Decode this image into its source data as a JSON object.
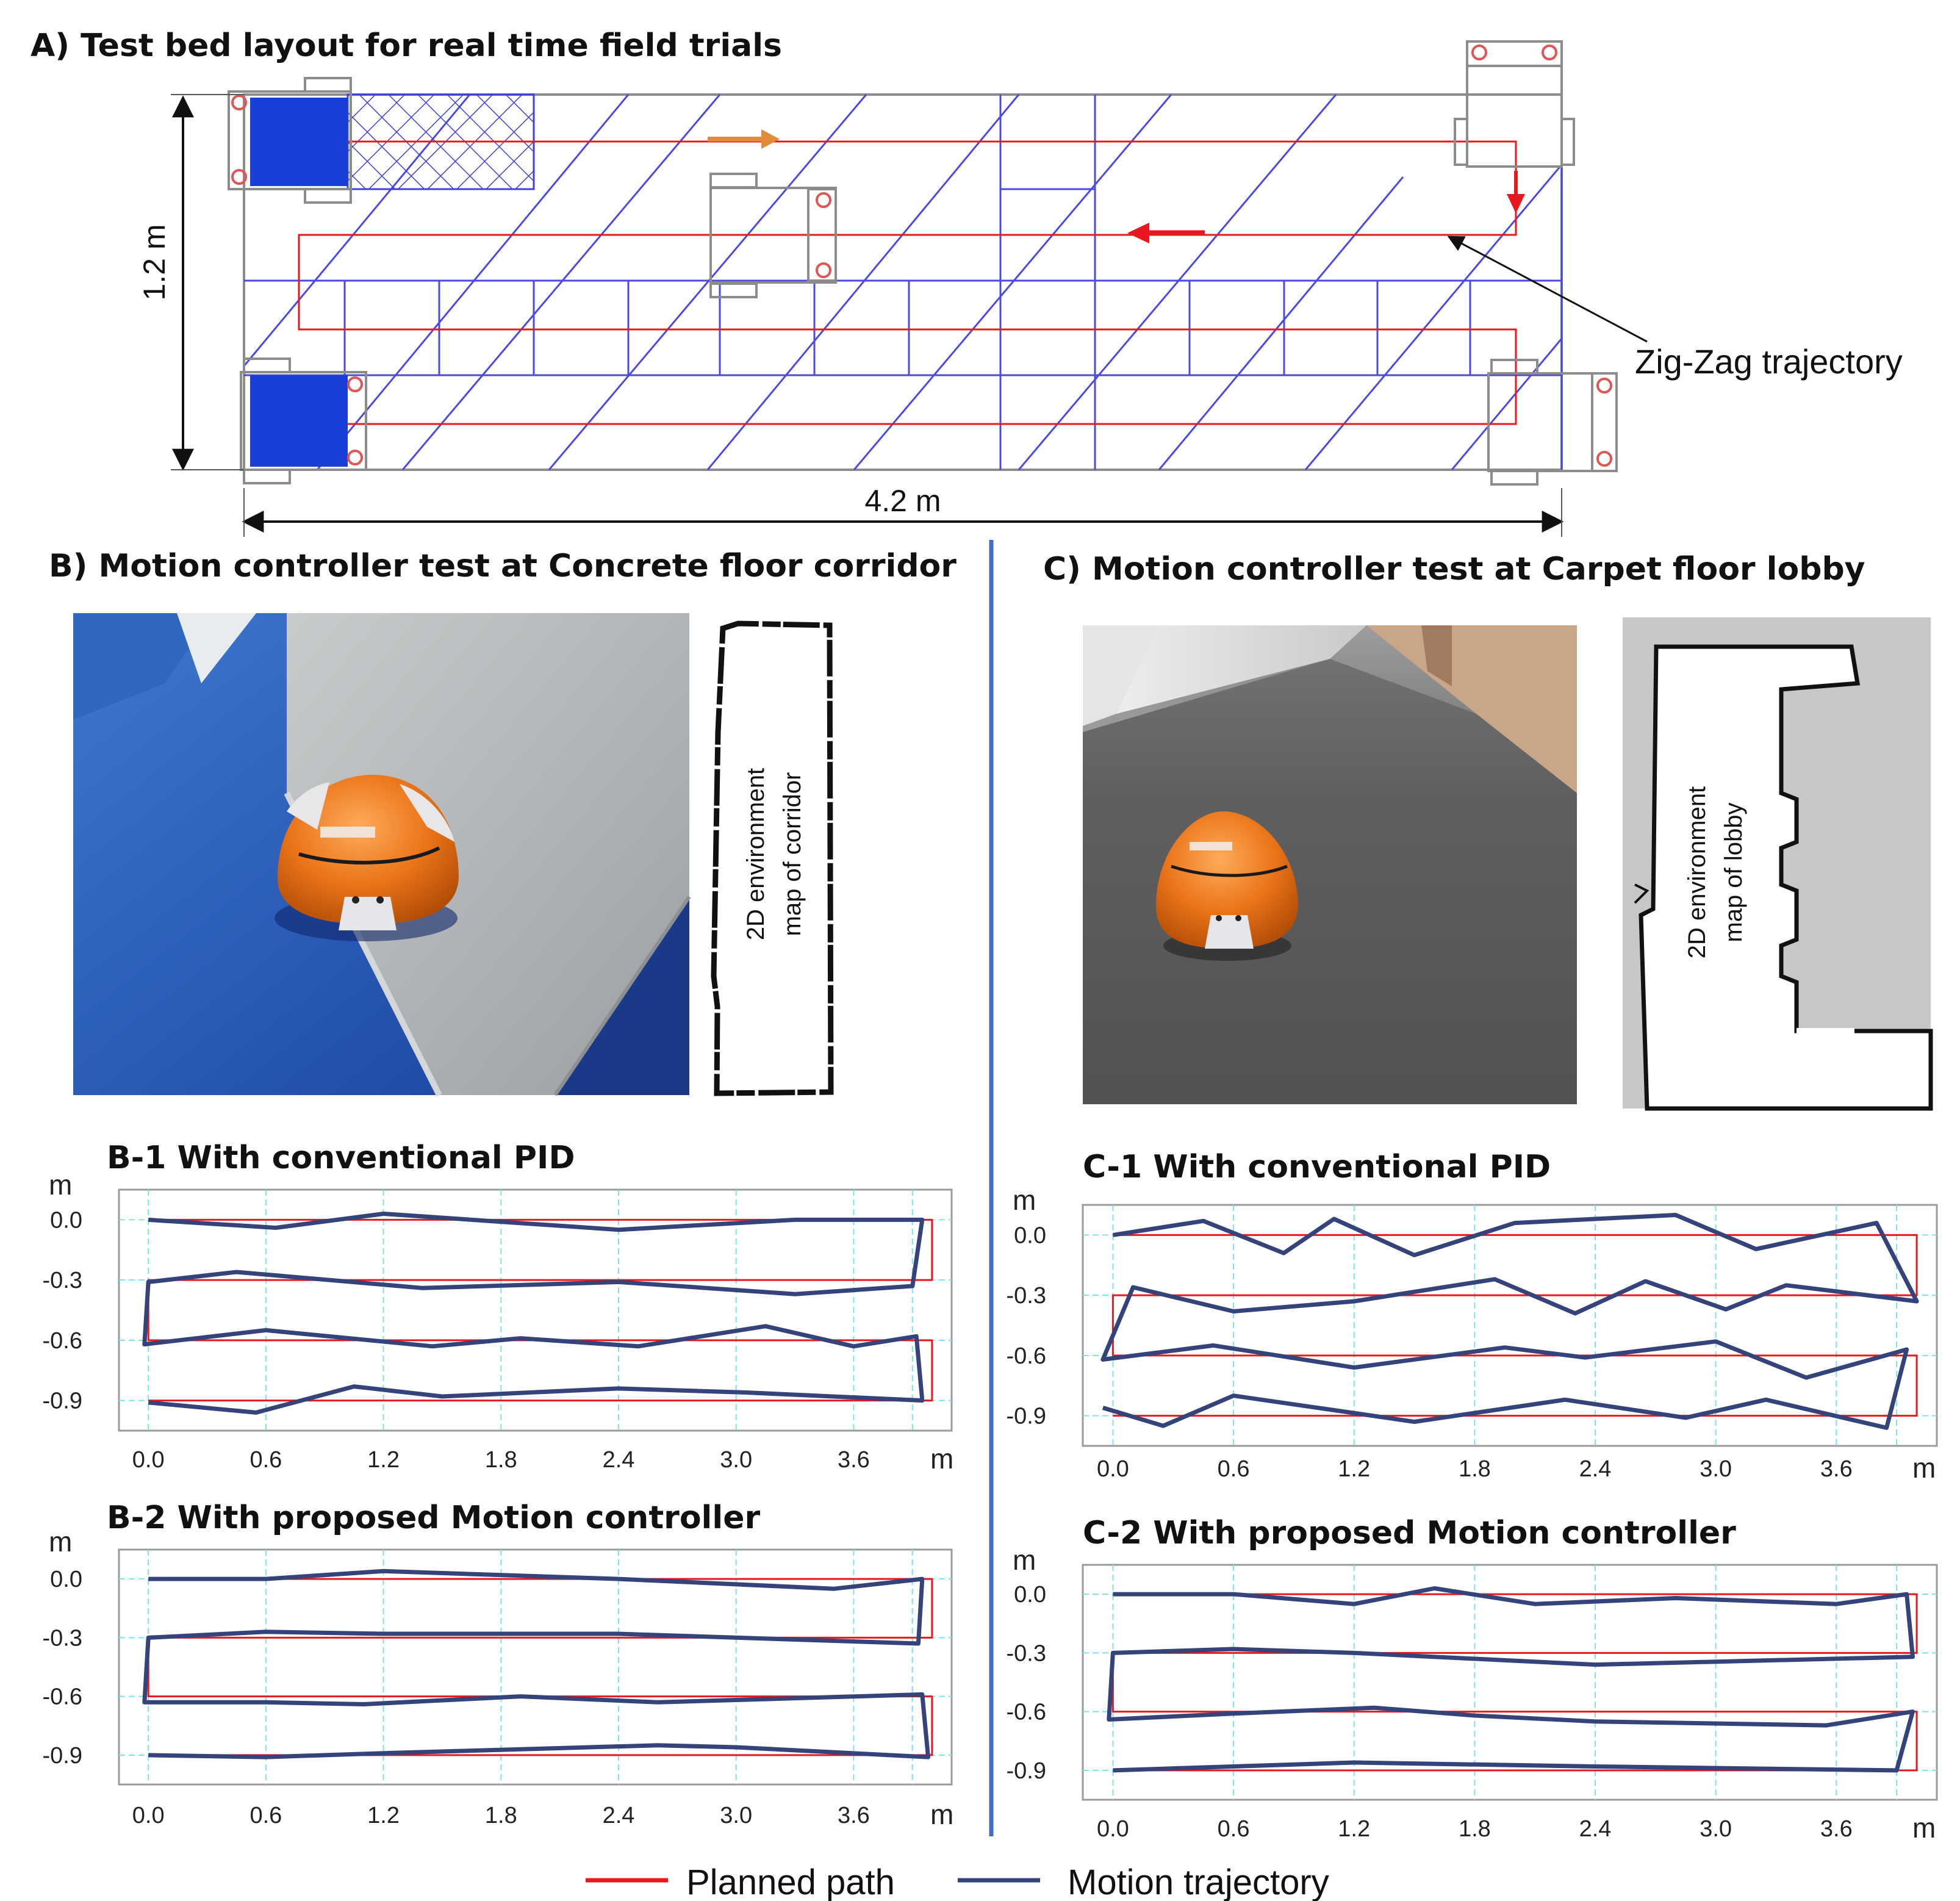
{
  "panelA": {
    "title": "A) Test bed layout for real time field trials",
    "height_label": "1.2 m",
    "width_label": "4.2 m",
    "annotation": "Zig-Zag trajectory"
  },
  "panelB": {
    "title": "B) Motion controller test at Concrete floor corridor",
    "map_label_line1": "2D environment",
    "map_label_line2": "map of corridor"
  },
  "panelC": {
    "title": "C) Motion controller test at Carpet floor lobby",
    "map_label_line1": "2D environment",
    "map_label_line2": "map of lobby"
  },
  "legend": {
    "planned": "Planned path",
    "trajectory": "Motion trajectory",
    "planned_color": "#e8181e",
    "trajectory_color": "#34437a"
  },
  "chart_data": [
    {
      "id": "B-1",
      "type": "line",
      "title": "B-1 With conventional PID",
      "xlabel": "m",
      "ylabel": "m",
      "xticks": [
        "0.0",
        "0.6",
        "1.2",
        "1.8",
        "2.4",
        "3.0",
        "3.6"
      ],
      "yticks": [
        "0.0",
        "-0.3",
        "-0.6",
        "-0.9"
      ],
      "xlim": [
        -0.15,
        4.1
      ],
      "ylim": [
        -1.05,
        0.15
      ],
      "series": [
        {
          "name": "Planned path",
          "x": [
            0,
            4.0,
            4.0,
            0,
            0,
            4.0,
            4.0,
            0
          ],
          "y": [
            0,
            0,
            -0.3,
            -0.3,
            -0.6,
            -0.6,
            -0.9,
            -0.9
          ]
        },
        {
          "name": "Motion trajectory",
          "x": [
            0,
            0.65,
            1.2,
            2.4,
            3.3,
            3.95,
            3.9,
            3.3,
            2.4,
            1.4,
            0.45,
            0,
            -0.02,
            0.6,
            1.45,
            1.9,
            2.5,
            3.15,
            3.6,
            3.92,
            3.95,
            3.05,
            2.4,
            1.5,
            1.05,
            0.55,
            0
          ],
          "y": [
            0,
            -0.04,
            0.03,
            -0.05,
            0.0,
            0.0,
            -0.33,
            -0.37,
            -0.31,
            -0.34,
            -0.26,
            -0.31,
            -0.62,
            -0.55,
            -0.63,
            -0.59,
            -0.63,
            -0.53,
            -0.63,
            -0.58,
            -0.9,
            -0.86,
            -0.84,
            -0.88,
            -0.83,
            -0.96,
            -0.91
          ]
        }
      ]
    },
    {
      "id": "B-2",
      "type": "line",
      "title": "B-2 With proposed Motion controller",
      "xlabel": "m",
      "ylabel": "m",
      "xticks": [
        "0.0",
        "0.6",
        "1.2",
        "1.8",
        "2.4",
        "3.0",
        "3.6"
      ],
      "yticks": [
        "0.0",
        "-0.3",
        "-0.6",
        "-0.9"
      ],
      "xlim": [
        -0.15,
        4.1
      ],
      "ylim": [
        -1.05,
        0.15
      ],
      "series": [
        {
          "name": "Planned path",
          "x": [
            0,
            4.0,
            4.0,
            0,
            0,
            4.0,
            4.0,
            0
          ],
          "y": [
            0,
            0,
            -0.3,
            -0.3,
            -0.6,
            -0.6,
            -0.9,
            -0.9
          ]
        },
        {
          "name": "Motion trajectory",
          "x": [
            0,
            0.6,
            1.2,
            2.4,
            3.5,
            3.95,
            3.93,
            2.4,
            1.2,
            0.6,
            0,
            -0.02,
            0.6,
            1.1,
            1.9,
            2.6,
            3.95,
            3.98,
            3.0,
            2.6,
            1.2,
            0.6,
            0
          ],
          "y": [
            0,
            0,
            0.04,
            0.0,
            -0.05,
            0.0,
            -0.33,
            -0.28,
            -0.28,
            -0.27,
            -0.3,
            -0.63,
            -0.63,
            -0.64,
            -0.6,
            -0.63,
            -0.59,
            -0.91,
            -0.86,
            -0.85,
            -0.89,
            -0.91,
            -0.9
          ]
        }
      ]
    },
    {
      "id": "C-1",
      "type": "line",
      "title": "C-1 With conventional PID",
      "xlabel": "m",
      "ylabel": "m",
      "xticks": [
        "0.0",
        "0.6",
        "1.2",
        "1.8",
        "2.4",
        "3.0",
        "3.6"
      ],
      "yticks": [
        "0.0",
        "-0.3",
        "-0.6",
        "-0.9"
      ],
      "xlim": [
        -0.15,
        4.1
      ],
      "ylim": [
        -1.05,
        0.15
      ],
      "series": [
        {
          "name": "Planned path",
          "x": [
            0,
            4.0,
            4.0,
            0,
            0,
            4.0,
            4.0,
            0
          ],
          "y": [
            0,
            0,
            -0.3,
            -0.3,
            -0.6,
            -0.6,
            -0.9,
            -0.9
          ]
        },
        {
          "name": "Motion trajectory",
          "x": [
            0,
            0.45,
            0.85,
            1.1,
            1.5,
            2.0,
            2.8,
            3.2,
            3.8,
            4.0,
            3.35,
            3.05,
            2.65,
            2.3,
            1.9,
            1.2,
            0.6,
            0.1,
            -0.05,
            0.5,
            1.2,
            1.95,
            2.35,
            3.0,
            3.45,
            3.95,
            3.85,
            3.25,
            2.85,
            2.25,
            1.5,
            0.6,
            0.25,
            -0.05
          ],
          "y": [
            0,
            0.07,
            -0.09,
            0.08,
            -0.1,
            0.06,
            0.1,
            -0.07,
            0.06,
            -0.33,
            -0.25,
            -0.37,
            -0.23,
            -0.39,
            -0.22,
            -0.33,
            -0.38,
            -0.26,
            -0.62,
            -0.55,
            -0.66,
            -0.56,
            -0.61,
            -0.53,
            -0.71,
            -0.57,
            -0.96,
            -0.82,
            -0.91,
            -0.82,
            -0.93,
            -0.8,
            -0.95,
            -0.86
          ]
        }
      ]
    },
    {
      "id": "C-2",
      "type": "line",
      "title": "C-2 With proposed Motion controller",
      "xlabel": "m",
      "ylabel": "m",
      "xticks": [
        "0.0",
        "0.6",
        "1.2",
        "1.8",
        "2.4",
        "3.0",
        "3.6"
      ],
      "yticks": [
        "0.0",
        "-0.3",
        "-0.6",
        "-0.9"
      ],
      "xlim": [
        -0.15,
        4.1
      ],
      "ylim": [
        -1.05,
        0.15
      ],
      "series": [
        {
          "name": "Planned path",
          "x": [
            0,
            4.0,
            4.0,
            0,
            0,
            4.0,
            4.0,
            0
          ],
          "y": [
            0,
            0,
            -0.3,
            -0.3,
            -0.6,
            -0.6,
            -0.9,
            -0.9
          ]
        },
        {
          "name": "Motion trajectory",
          "x": [
            0,
            0.6,
            1.2,
            1.6,
            2.1,
            2.8,
            3.6,
            3.95,
            3.98,
            2.4,
            1.2,
            0.6,
            0,
            -0.02,
            0.6,
            1.3,
            1.8,
            2.4,
            3.55,
            3.98,
            3.9,
            2.4,
            1.2,
            0
          ],
          "y": [
            0,
            0,
            -0.05,
            0.03,
            -0.05,
            -0.02,
            -0.05,
            0.0,
            -0.32,
            -0.36,
            -0.3,
            -0.28,
            -0.3,
            -0.64,
            -0.61,
            -0.58,
            -0.62,
            -0.65,
            -0.67,
            -0.6,
            -0.9,
            -0.88,
            -0.86,
            -0.9
          ]
        }
      ]
    }
  ]
}
